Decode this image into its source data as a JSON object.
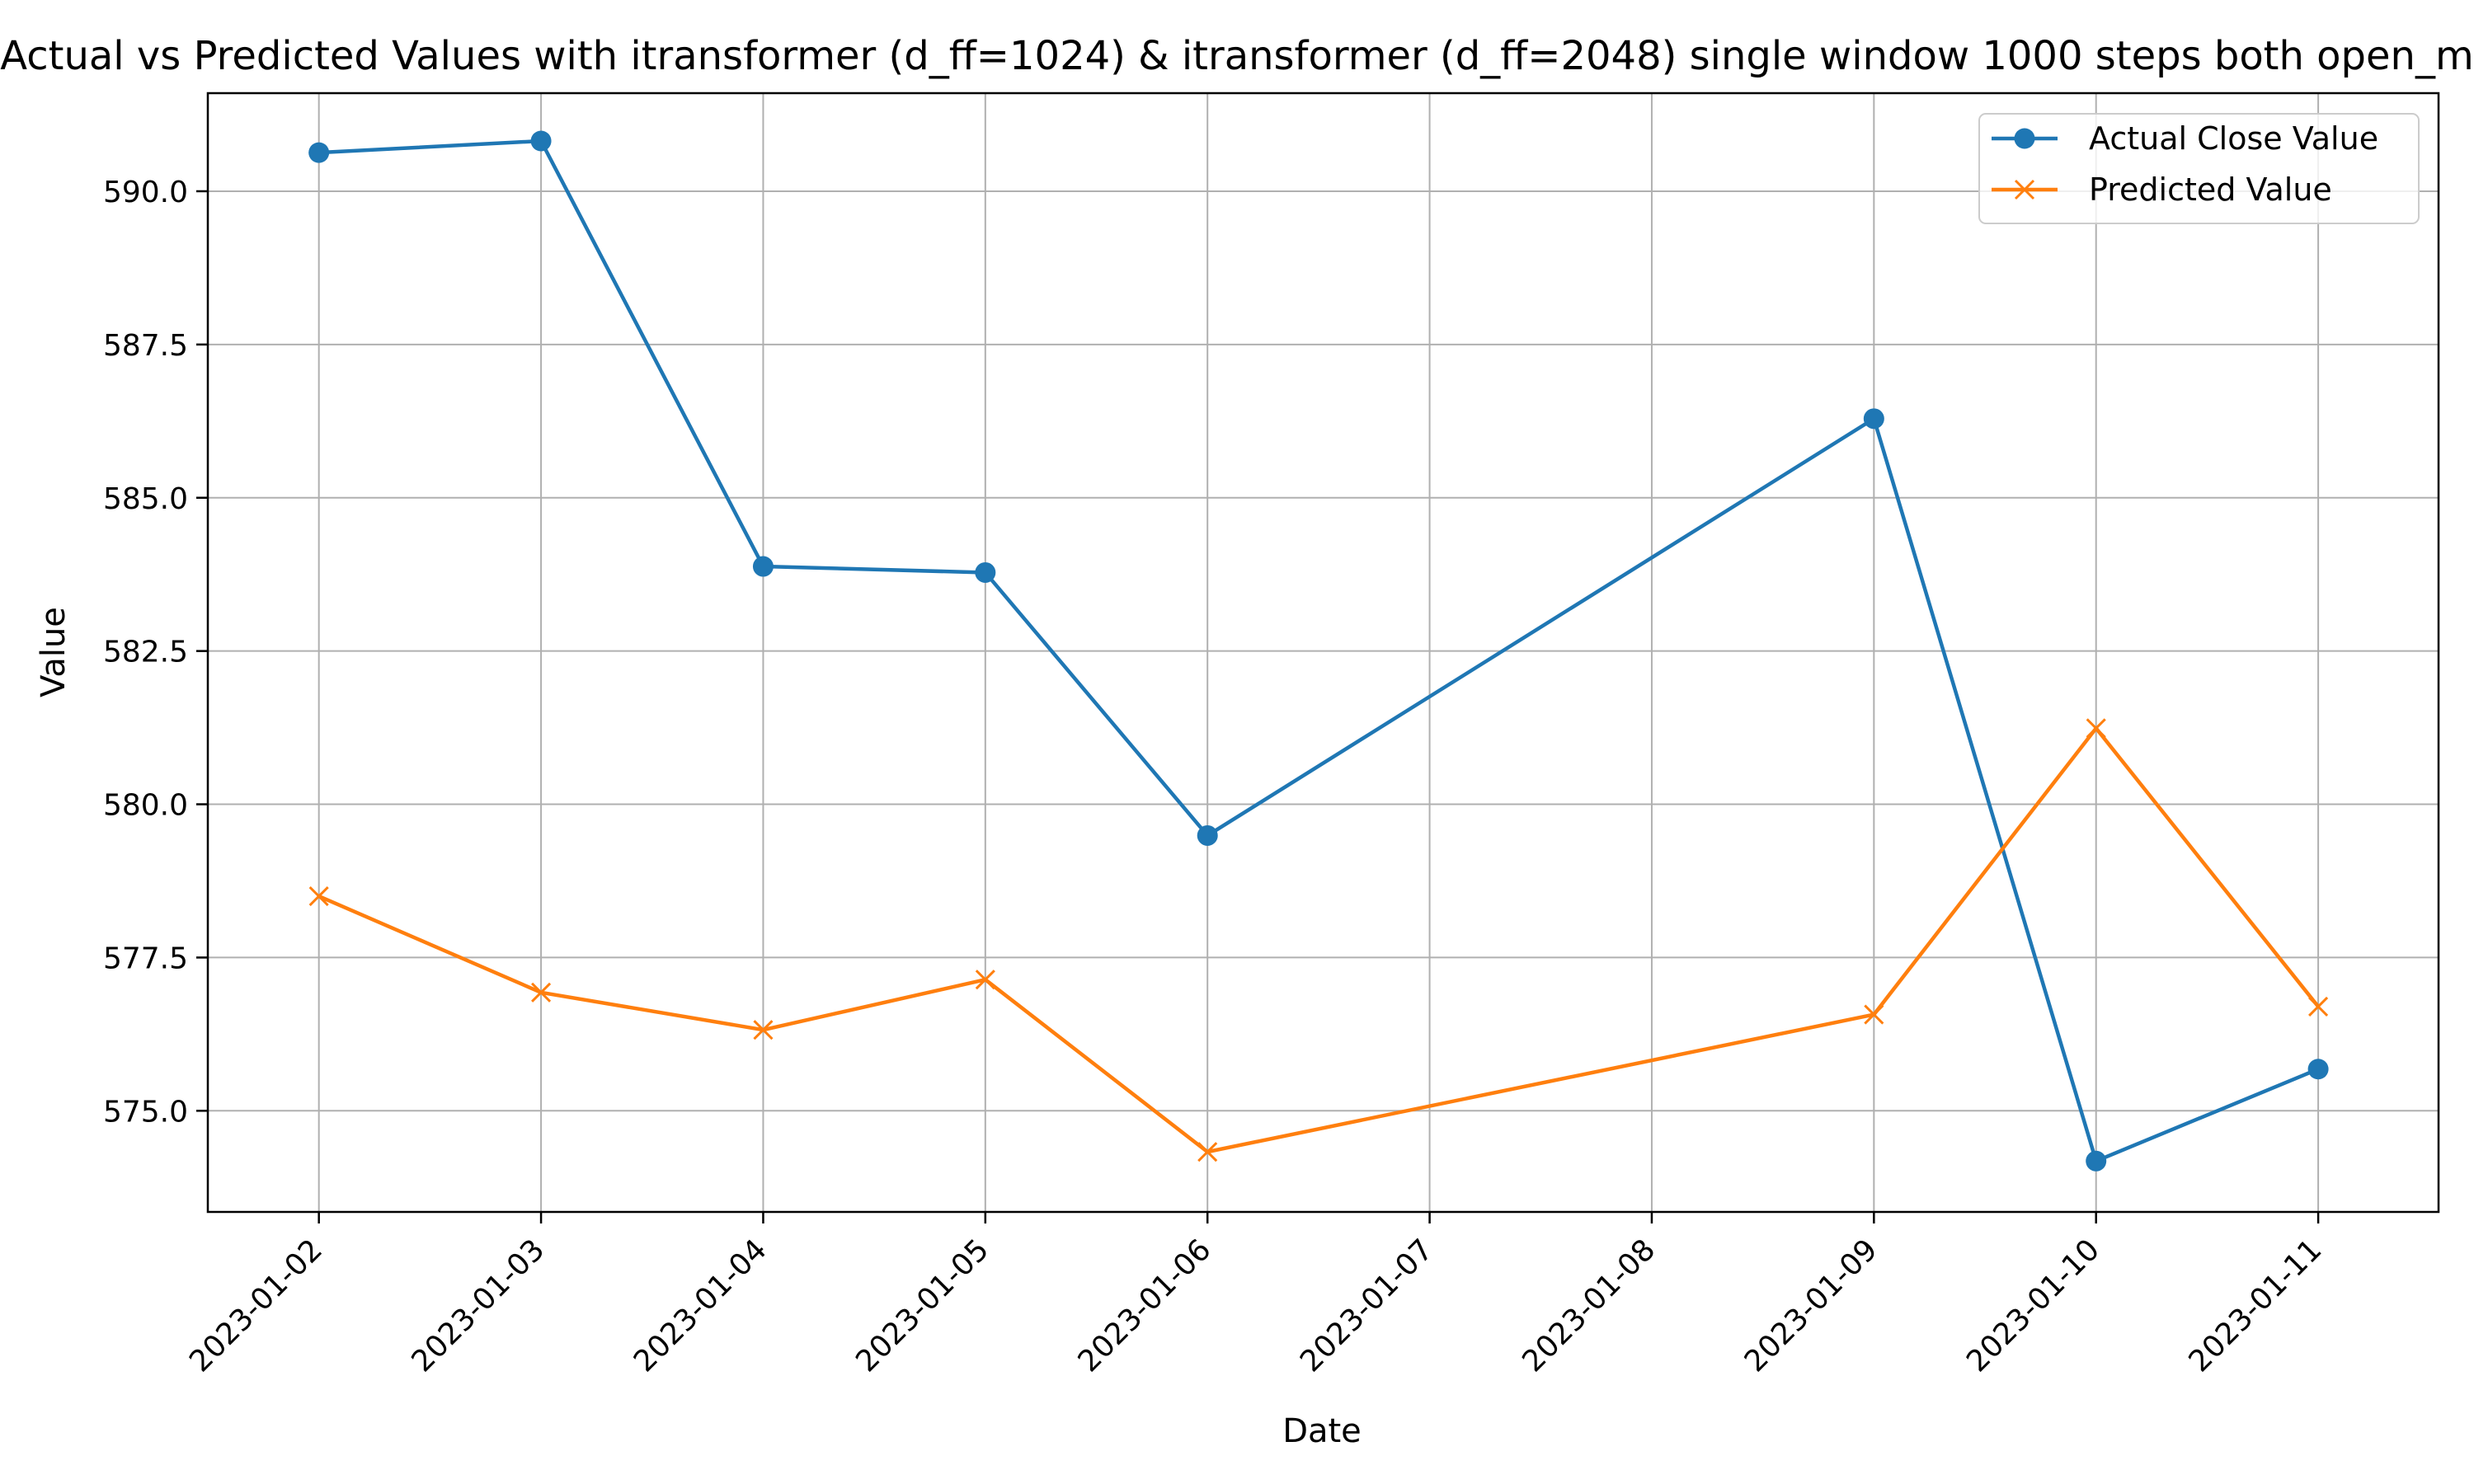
{
  "chart_data": {
    "type": "line",
    "title": "Actual vs Predicted Values with itransformer (d_ff=1024) &  itransformer (d_ff=2048) single window 1000 steps both open_m",
    "xlabel": "Date",
    "ylabel": "Value",
    "x_ticks": [
      "2023-01-02",
      "2023-01-03",
      "2023-01-04",
      "2023-01-05",
      "2023-01-06",
      "2023-01-07",
      "2023-01-08",
      "2023-01-09",
      "2023-01-10",
      "2023-01-11"
    ],
    "y_ticks": [
      "575.0",
      "577.5",
      "580.0",
      "582.5",
      "585.0",
      "587.5",
      "590.0"
    ],
    "ylim": [
      573.35,
      591.6
    ],
    "xlim": [
      "2023-01-01T12:00",
      "2023-01-11T13:00"
    ],
    "grid": true,
    "legend_position": "top-right",
    "series": [
      {
        "name": "Actual Close Value",
        "color": "#1f77b4",
        "marker": "circle",
        "x": [
          "2023-01-02",
          "2023-01-03",
          "2023-01-04",
          "2023-01-05",
          "2023-01-06",
          "2023-01-09",
          "2023-01-10",
          "2023-01-11"
        ],
        "values": [
          590.63,
          590.82,
          583.88,
          583.78,
          579.49,
          586.29,
          574.18,
          575.68
        ]
      },
      {
        "name": "Predicted Value",
        "color": "#ff7f0e",
        "marker": "x",
        "x": [
          "2023-01-02",
          "2023-01-03",
          "2023-01-04",
          "2023-01-05",
          "2023-01-06",
          "2023-01-09",
          "2023-01-10",
          "2023-01-11"
        ],
        "values": [
          578.5,
          576.93,
          576.32,
          577.14,
          574.33,
          576.57,
          581.24,
          576.7
        ]
      }
    ]
  }
}
